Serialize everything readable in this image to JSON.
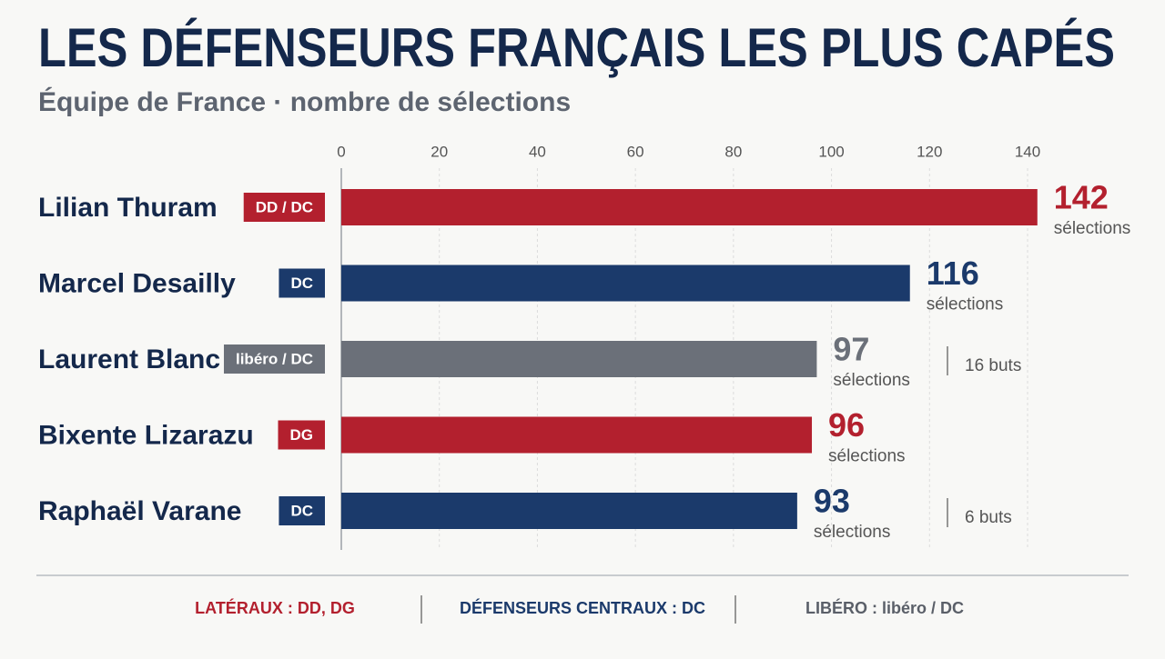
{
  "chart_data": {
    "type": "bar",
    "title": "LES DÉFENSEURS FRANÇAIS LES PLUS CAPÉS",
    "subtitle": "Équipe de France · nombre de sélections",
    "categories": [
      "Lilian Thuram",
      "Marcel Desailly",
      "Laurent Blanc",
      "Bixente Lizarazu",
      "Raphaël Varane"
    ],
    "positions": [
      "DD / DC",
      "DC",
      "libéro / DC",
      "DG",
      "DC"
    ],
    "values": [
      142,
      116,
      97,
      96,
      93
    ],
    "colors": [
      "#b3202e",
      "#1b3a6b",
      "#6b7079",
      "#b3202e",
      "#1b3a6b"
    ],
    "value_unit": "sélections",
    "notes": [
      null,
      null,
      "16 buts",
      null,
      "6 buts"
    ],
    "xlim": [
      0,
      140
    ],
    "xticks": [
      0,
      20,
      40,
      60,
      80,
      100,
      120,
      140
    ],
    "grid": true,
    "legend": [
      {
        "label": "LATÉRAUX : DD, DG",
        "color": "#b3202e"
      },
      {
        "label": "DÉFENSEURS CENTRAUX : DC",
        "color": "#1b3a6b"
      },
      {
        "label": "LIBÉRO : libéro / DC",
        "color": "#5a5f68"
      }
    ]
  }
}
